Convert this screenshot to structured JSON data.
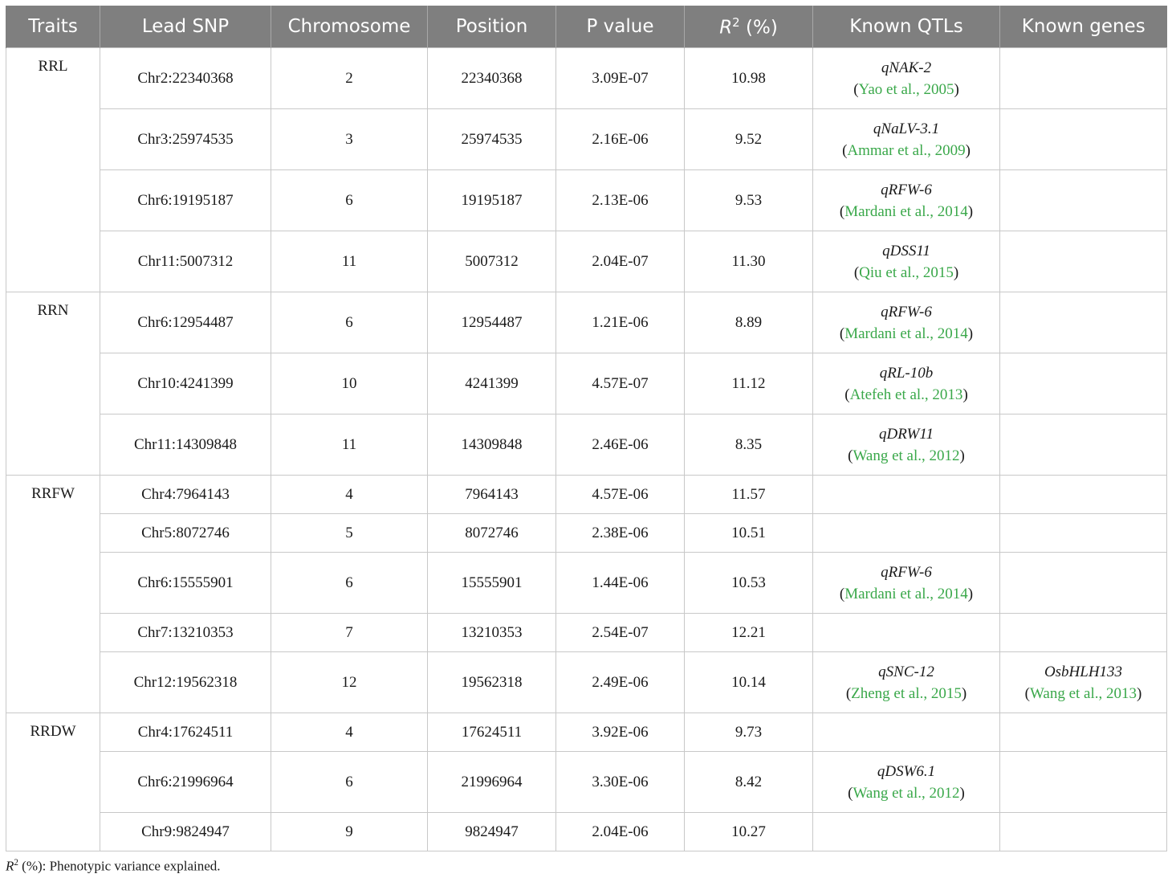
{
  "headers": [
    "Traits",
    "Lead SNP",
    "Chromosome",
    "Position",
    "P value",
    "R2_header",
    "Known QTLs",
    "Known genes"
  ],
  "header_r2": {
    "R": "R",
    "sup": "2",
    "rest": " (%)"
  },
  "groups": [
    {
      "trait": "RRL",
      "rows": [
        {
          "snp": "Chr2:22340368",
          "chr": "2",
          "pos": "22340368",
          "p": "3.09E-07",
          "r2": "10.98",
          "qtl": "qNAK-2",
          "qtl_ref": "Yao et al., 2005",
          "gene": "",
          "gene_ref": ""
        },
        {
          "snp": "Chr3:25974535",
          "chr": "3",
          "pos": "25974535",
          "p": "2.16E-06",
          "r2": "9.52",
          "qtl": "qNaLV-3.1",
          "qtl_ref": "Ammar et al., 2009",
          "gene": "",
          "gene_ref": ""
        },
        {
          "snp": "Chr6:19195187",
          "chr": "6",
          "pos": "19195187",
          "p": "2.13E-06",
          "r2": "9.53",
          "qtl": "qRFW-6",
          "qtl_ref": "Mardani et al., 2014",
          "gene": "",
          "gene_ref": ""
        },
        {
          "snp": "Chr11:5007312",
          "chr": "11",
          "pos": "5007312",
          "p": "2.04E-07",
          "r2": "11.30",
          "qtl": "qDSS11",
          "qtl_ref": "Qiu et al., 2015",
          "gene": "",
          "gene_ref": ""
        }
      ]
    },
    {
      "trait": "RRN",
      "rows": [
        {
          "snp": "Chr6:12954487",
          "chr": "6",
          "pos": "12954487",
          "p": "1.21E-06",
          "r2": "8.89",
          "qtl": "qRFW-6",
          "qtl_ref": "Mardani et al., 2014",
          "gene": "",
          "gene_ref": ""
        },
        {
          "snp": "Chr10:4241399",
          "chr": "10",
          "pos": "4241399",
          "p": "4.57E-07",
          "r2": "11.12",
          "qtl": "qRL-10b",
          "qtl_ref": "Atefeh et al., 2013",
          "gene": "",
          "gene_ref": ""
        },
        {
          "snp": "Chr11:14309848",
          "chr": "11",
          "pos": "14309848",
          "p": "2.46E-06",
          "r2": "8.35",
          "qtl": "qDRW11",
          "qtl_ref": "Wang et al., 2012",
          "gene": "",
          "gene_ref": ""
        }
      ]
    },
    {
      "trait": "RRFW",
      "rows": [
        {
          "snp": "Chr4:7964143",
          "chr": "4",
          "pos": "7964143",
          "p": "4.57E-06",
          "r2": "11.57",
          "qtl": "",
          "qtl_ref": "",
          "gene": "",
          "gene_ref": ""
        },
        {
          "snp": "Chr5:8072746",
          "chr": "5",
          "pos": "8072746",
          "p": "2.38E-06",
          "r2": "10.51",
          "qtl": "",
          "qtl_ref": "",
          "gene": "",
          "gene_ref": ""
        },
        {
          "snp": "Chr6:15555901",
          "chr": "6",
          "pos": "15555901",
          "p": "1.44E-06",
          "r2": "10.53",
          "qtl": "qRFW-6",
          "qtl_ref": "Mardani et al., 2014",
          "gene": "",
          "gene_ref": ""
        },
        {
          "snp": "Chr7:13210353",
          "chr": "7",
          "pos": "13210353",
          "p": "2.54E-07",
          "r2": "12.21",
          "qtl": "",
          "qtl_ref": "",
          "gene": "",
          "gene_ref": ""
        },
        {
          "snp": "Chr12:19562318",
          "chr": "12",
          "pos": "19562318",
          "p": "2.49E-06",
          "r2": "10.14",
          "qtl": "qSNC-12",
          "qtl_ref": "Zheng et al., 2015",
          "gene": "OsbHLH133",
          "gene_ref": "Wang et al., 2013"
        }
      ]
    },
    {
      "trait": "RRDW",
      "rows": [
        {
          "snp": "Chr4:17624511",
          "chr": "4",
          "pos": "17624511",
          "p": "3.92E-06",
          "r2": "9.73",
          "qtl": "",
          "qtl_ref": "",
          "gene": "",
          "gene_ref": ""
        },
        {
          "snp": "Chr6:21996964",
          "chr": "6",
          "pos": "21996964",
          "p": "3.30E-06",
          "r2": "8.42",
          "qtl": "qDSW6.1",
          "qtl_ref": "Wang et al., 2012",
          "gene": "",
          "gene_ref": ""
        },
        {
          "snp": "Chr9:9824947",
          "chr": "9",
          "pos": "9824947",
          "p": "2.04E-06",
          "r2": "10.27",
          "qtl": "",
          "qtl_ref": "",
          "gene": "",
          "gene_ref": ""
        }
      ]
    }
  ],
  "footnote": {
    "r": "R",
    "sup": "2",
    "text": " (%): Phenotypic variance explained."
  },
  "colors": {
    "header_bg": "#7f7f7f",
    "citation": "#3aa84a"
  }
}
